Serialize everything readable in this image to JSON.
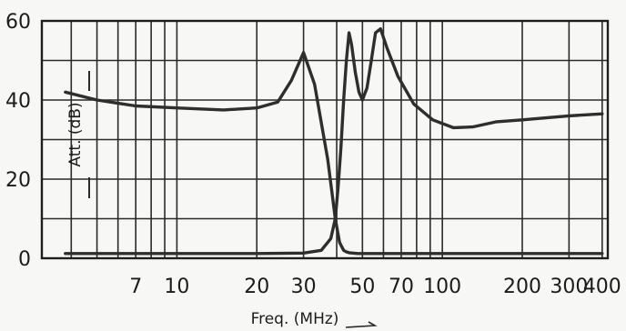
{
  "chart_data": {
    "type": "line",
    "xlabel": "Freq. (MHz)",
    "ylabel": "Att. (dB)",
    "x_scale": "log",
    "xlim": [
      3.1,
      420
    ],
    "ylim": [
      0,
      60
    ],
    "x_ticks": [
      7,
      10,
      20,
      30,
      50,
      70,
      100,
      200,
      300,
      400
    ],
    "x_tick_labels": [
      "7",
      "10",
      "20",
      "30",
      "50",
      "70",
      "100",
      "200",
      "300",
      "400"
    ],
    "y_ticks": [
      0,
      20,
      40,
      60
    ],
    "y_tick_labels": [
      "0",
      "20",
      "40",
      "60"
    ],
    "grid": true,
    "series": [
      {
        "x": [
          3.8,
          5,
          7,
          10,
          15,
          20,
          24,
          27,
          30,
          33,
          37,
          39.5,
          41,
          42.5,
          43.5,
          44.5,
          46,
          48,
          50,
          52,
          54,
          56,
          58.5,
          62,
          68,
          78,
          92,
          110,
          130,
          160,
          200,
          300,
          400
        ],
        "y": [
          42,
          40,
          38.5,
          38,
          37.5,
          38,
          39.5,
          45,
          52,
          44,
          25,
          10,
          4,
          2,
          1.6,
          1.4,
          1.3,
          1.2,
          1.2,
          1.2,
          1.2,
          1.2,
          1.2,
          1.2,
          1.2,
          1.2,
          1.2,
          1.2,
          1.2,
          1.2,
          1.2,
          1.2,
          1.2
        ],
        "color": "#2e2e2e"
      },
      {
        "x": [
          3.8,
          10,
          20,
          30,
          35,
          38,
          39.5,
          40.5,
          41.5,
          42.5,
          43.5,
          44.5,
          45.5,
          47,
          48.5,
          50,
          52,
          54,
          56,
          58.5,
          62,
          68,
          78,
          92,
          110,
          130,
          160,
          200,
          300,
          400
        ],
        "y": [
          1.2,
          1.2,
          1.2,
          1.3,
          2,
          5,
          10,
          18,
          28,
          40,
          50,
          57,
          54,
          47,
          42,
          40,
          43,
          50,
          57,
          58,
          53,
          46,
          39,
          35,
          33,
          33.2,
          34.5,
          35,
          36,
          36.5
        ],
        "color": "#2e2e2e"
      }
    ]
  }
}
